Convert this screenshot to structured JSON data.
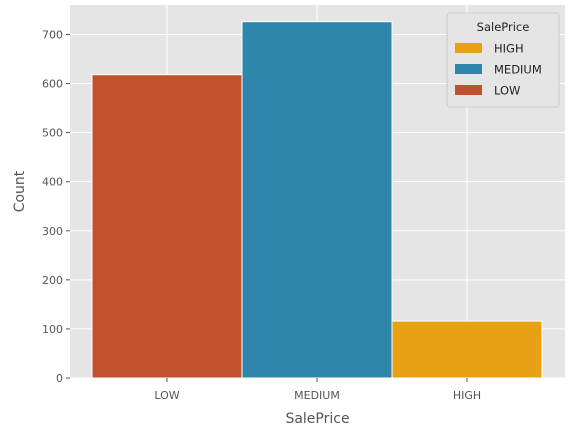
{
  "chart_data": {
    "type": "bar",
    "categories": [
      "LOW",
      "MEDIUM",
      "HIGH"
    ],
    "values": [
      618,
      726,
      116
    ],
    "bar_colors": [
      "#c0502e",
      "#2e86ad",
      "#e8a115"
    ],
    "xlabel": "SalePrice",
    "ylabel": "Count",
    "ylim": [
      0,
      760
    ],
    "yticks": [
      0,
      100,
      200,
      300,
      400,
      500,
      600,
      700
    ],
    "grid": true,
    "background": "#e5e5e5",
    "legend": {
      "title": "SalePrice",
      "placement": "top-right",
      "entries": [
        {
          "label": "HIGH",
          "color": "#e8a115"
        },
        {
          "label": "MEDIUM",
          "color": "#2e86ad"
        },
        {
          "label": "LOW",
          "color": "#c0502e"
        }
      ]
    }
  }
}
